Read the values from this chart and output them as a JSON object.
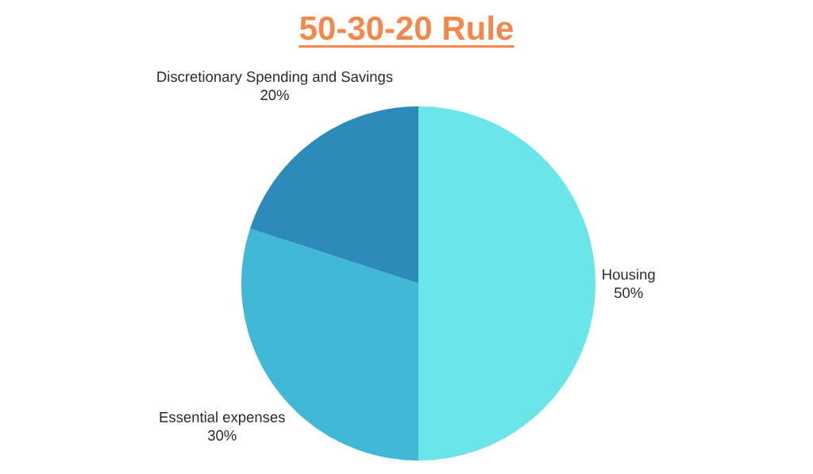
{
  "chart_data": {
    "type": "pie",
    "title": "50-30-20 Rule",
    "categories": [
      "Housing",
      "Essential expenses",
      "Discretionary Spending and Savings"
    ],
    "values": [
      50,
      30,
      20
    ],
    "value_labels": [
      "50%",
      "30%",
      "20%"
    ],
    "colors": [
      "#6ce5e8",
      "#41b8d5",
      "#2d8bba"
    ]
  }
}
